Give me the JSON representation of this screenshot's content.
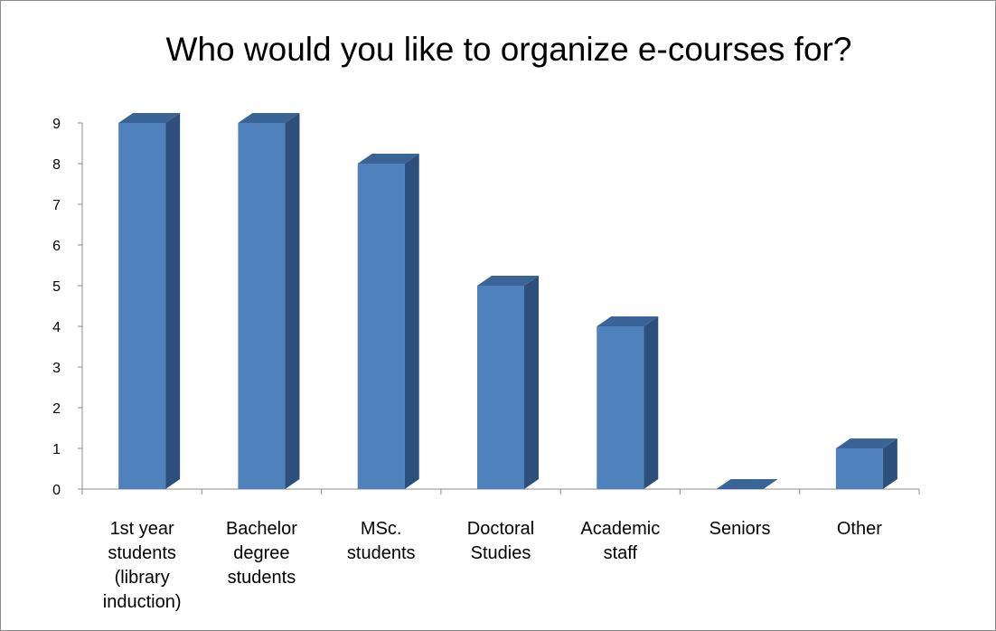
{
  "chart_data": {
    "type": "bar",
    "title": "Who would you like to organize e-courses for?",
    "categories": [
      [
        "1st year",
        "students",
        "(library",
        "induction)"
      ],
      [
        "Bachelor",
        "degree",
        "students"
      ],
      [
        "MSc.",
        "students"
      ],
      [
        "Doctoral",
        "Studies"
      ],
      [
        "Academic",
        "staff"
      ],
      [
        "Seniors"
      ],
      [
        "Other"
      ]
    ],
    "values": [
      9,
      9,
      8,
      5,
      4,
      0,
      1
    ],
    "ylim": [
      0,
      9
    ],
    "yticks": [
      0,
      1,
      2,
      3,
      4,
      5,
      6,
      7,
      8,
      9
    ],
    "style": "3d-column",
    "colors": {
      "front": "#4f81bd",
      "side": "#2c4f7c",
      "top": "#3a6396"
    },
    "grid": false,
    "legend": "none"
  }
}
